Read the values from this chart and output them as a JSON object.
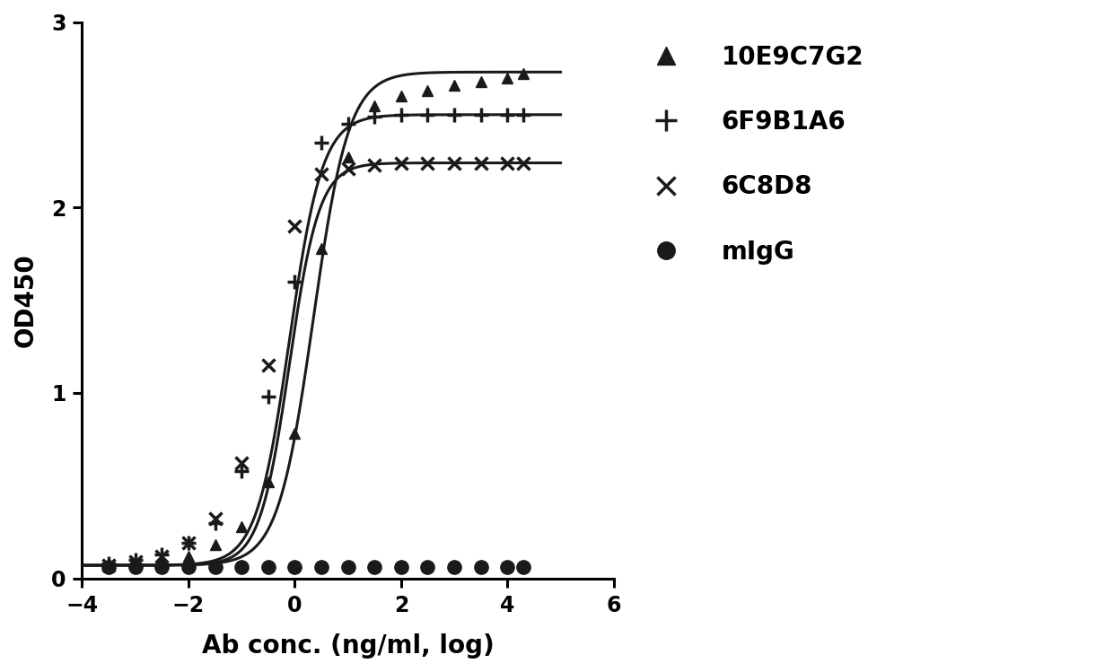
{
  "title": "",
  "xlabel": "Ab conc. (ng/ml, log)",
  "ylabel": "OD450",
  "xlim": [
    -4,
    6
  ],
  "ylim": [
    0,
    3
  ],
  "xticks": [
    -4,
    -2,
    0,
    2,
    4,
    6
  ],
  "yticks": [
    0,
    1,
    2,
    3
  ],
  "background_color": "#ffffff",
  "series": [
    {
      "label": "10E9C7G2",
      "marker": "^",
      "color": "#1a1a1a",
      "markersize": 9,
      "x_data": [
        -3.5,
        -3.0,
        -2.5,
        -2.0,
        -1.5,
        -1.0,
        -0.5,
        0.0,
        0.5,
        1.0,
        1.5,
        2.0,
        2.5,
        3.0,
        3.5,
        4.0,
        4.3
      ],
      "y_data": [
        0.07,
        0.08,
        0.09,
        0.12,
        0.18,
        0.28,
        0.52,
        0.78,
        1.78,
        2.27,
        2.55,
        2.6,
        2.63,
        2.66,
        2.68,
        2.7,
        2.72
      ],
      "sigmoid_bottom": 0.07,
      "sigmoid_top": 2.73,
      "sigmoid_ec50": 0.35,
      "sigmoid_hillslope": 1.3
    },
    {
      "label": "6F9B1A6",
      "marker": "+",
      "color": "#1a1a1a",
      "markersize": 12,
      "x_data": [
        -3.5,
        -3.0,
        -2.5,
        -2.0,
        -1.5,
        -1.0,
        -0.5,
        0.0,
        0.5,
        1.0,
        1.5,
        2.0,
        2.5,
        3.0,
        3.5,
        4.0,
        4.3
      ],
      "y_data": [
        0.08,
        0.1,
        0.13,
        0.19,
        0.3,
        0.58,
        0.98,
        1.6,
        2.35,
        2.45,
        2.49,
        2.5,
        2.5,
        2.5,
        2.5,
        2.5,
        2.5
      ],
      "sigmoid_bottom": 0.07,
      "sigmoid_top": 2.5,
      "sigmoid_ec50": -0.1,
      "sigmoid_hillslope": 1.4
    },
    {
      "label": "6C8D8",
      "marker": "x",
      "color": "#1a1a1a",
      "markersize": 10,
      "x_data": [
        -3.5,
        -3.0,
        -2.5,
        -2.0,
        -1.5,
        -1.0,
        -0.5,
        0.0,
        0.5,
        1.0,
        1.5,
        2.0,
        2.5,
        3.0,
        3.5,
        4.0,
        4.3
      ],
      "y_data": [
        0.07,
        0.09,
        0.12,
        0.19,
        0.32,
        0.62,
        1.15,
        1.9,
        2.18,
        2.21,
        2.23,
        2.24,
        2.24,
        2.24,
        2.24,
        2.24,
        2.24
      ],
      "sigmoid_bottom": 0.07,
      "sigmoid_top": 2.24,
      "sigmoid_ec50": -0.1,
      "sigmoid_hillslope": 1.55
    },
    {
      "label": "mIgG",
      "marker": "o",
      "color": "#1a1a1a",
      "markersize": 11,
      "x_data": [
        -3.5,
        -3.0,
        -2.5,
        -2.0,
        -1.5,
        -1.0,
        -0.5,
        0.0,
        0.5,
        1.0,
        1.5,
        2.0,
        2.5,
        3.0,
        3.5,
        4.0,
        4.3
      ],
      "y_data": [
        0.06,
        0.06,
        0.06,
        0.06,
        0.06,
        0.06,
        0.06,
        0.06,
        0.06,
        0.06,
        0.06,
        0.06,
        0.06,
        0.06,
        0.06,
        0.06,
        0.06
      ],
      "draw_line": false
    }
  ],
  "axis_linewidth": 2.2,
  "line_linewidth": 2.2
}
